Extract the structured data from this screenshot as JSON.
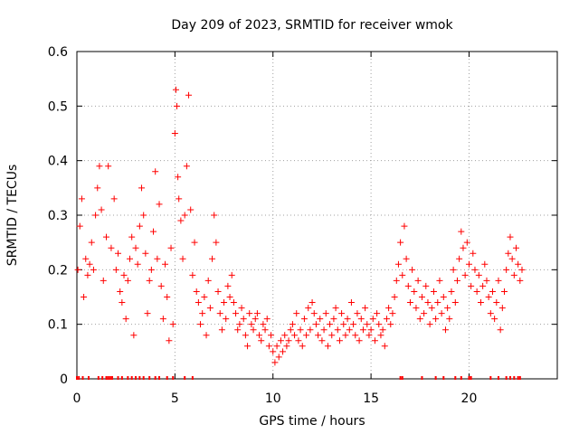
{
  "chart_data": {
    "type": "scatter",
    "title": "Day 209 of 2023, SRMTID for receiver wmok",
    "xlabel": "GPS time / hours",
    "ylabel": "SRMTID / TECUs",
    "xlim": [
      0,
      24.5
    ],
    "ylim": [
      0,
      0.6
    ],
    "xticks": [
      0,
      5,
      10,
      15,
      20
    ],
    "xtick_labels": [
      "0",
      "5",
      "10",
      "15",
      "20"
    ],
    "yticks": [
      0,
      0.1,
      0.2,
      0.3,
      0.4,
      0.5,
      0.6
    ],
    "ytick_labels": [
      "0",
      "0.1",
      "0.2",
      "0.3",
      "0.4",
      "0.5",
      "0.6"
    ],
    "grid": true,
    "marker": "+",
    "series": [
      {
        "name": "SRMTID",
        "color": "#ff0000",
        "x": [
          0.05,
          0.15,
          0.25,
          0.35,
          0.45,
          0.55,
          0.65,
          0.75,
          0.85,
          0.95,
          1.05,
          1.15,
          1.25,
          1.35,
          1.5,
          1.6,
          1.75,
          1.9,
          2.0,
          2.1,
          2.2,
          2.3,
          2.4,
          2.5,
          2.6,
          2.7,
          2.8,
          2.9,
          3.0,
          3.1,
          3.2,
          3.3,
          3.4,
          3.5,
          3.6,
          3.7,
          3.8,
          3.9,
          4.0,
          4.1,
          4.2,
          4.3,
          4.4,
          4.5,
          4.6,
          4.7,
          4.8,
          4.9,
          5.0,
          5.05,
          5.1,
          5.15,
          5.2,
          5.3,
          5.4,
          5.5,
          5.6,
          5.7,
          5.8,
          5.9,
          6.0,
          6.1,
          6.2,
          6.3,
          6.4,
          6.5,
          6.6,
          6.7,
          6.8,
          6.9,
          7.0,
          7.1,
          7.2,
          7.3,
          7.4,
          7.5,
          7.6,
          7.7,
          7.8,
          7.9,
          8.0,
          8.1,
          8.2,
          8.3,
          8.4,
          8.5,
          8.6,
          8.7,
          8.8,
          8.9,
          9.0,
          9.1,
          9.2,
          9.3,
          9.4,
          9.5,
          9.6,
          9.7,
          9.8,
          9.9,
          10.0,
          10.1,
          10.2,
          10.3,
          10.4,
          10.5,
          10.6,
          10.7,
          10.8,
          10.9,
          11.0,
          11.1,
          11.2,
          11.3,
          11.4,
          11.5,
          11.6,
          11.7,
          11.8,
          11.9,
          12.0,
          12.1,
          12.2,
          12.3,
          12.4,
          12.5,
          12.6,
          12.7,
          12.8,
          12.9,
          13.0,
          13.1,
          13.2,
          13.3,
          13.4,
          13.5,
          13.6,
          13.7,
          13.8,
          13.9,
          14.0,
          14.1,
          14.2,
          14.3,
          14.4,
          14.5,
          14.6,
          14.7,
          14.8,
          14.9,
          15.0,
          15.1,
          15.2,
          15.3,
          15.4,
          15.5,
          15.6,
          15.7,
          15.8,
          15.9,
          16.0,
          16.1,
          16.2,
          16.3,
          16.4,
          16.5,
          16.6,
          16.7,
          16.8,
          16.9,
          17.0,
          17.1,
          17.2,
          17.3,
          17.4,
          17.5,
          17.6,
          17.7,
          17.8,
          17.9,
          18.0,
          18.1,
          18.2,
          18.3,
          18.4,
          18.5,
          18.6,
          18.7,
          18.8,
          18.9,
          19.0,
          19.1,
          19.2,
          19.3,
          19.4,
          19.5,
          19.6,
          19.7,
          19.8,
          19.9,
          20.0,
          20.1,
          20.2,
          20.3,
          20.4,
          20.5,
          20.6,
          20.7,
          20.8,
          20.9,
          21.0,
          21.1,
          21.2,
          21.3,
          21.4,
          21.5,
          21.6,
          21.7,
          21.8,
          21.9,
          22.0,
          22.1,
          22.2,
          22.3,
          22.4,
          22.5,
          22.6,
          22.7
        ],
        "y": [
          0.2,
          0.28,
          0.33,
          0.15,
          0.22,
          0.19,
          0.21,
          0.25,
          0.2,
          0.3,
          0.35,
          0.39,
          0.31,
          0.18,
          0.26,
          0.39,
          0.24,
          0.33,
          0.2,
          0.23,
          0.16,
          0.14,
          0.19,
          0.11,
          0.18,
          0.22,
          0.26,
          0.08,
          0.24,
          0.21,
          0.28,
          0.35,
          0.3,
          0.23,
          0.12,
          0.18,
          0.2,
          0.27,
          0.38,
          0.22,
          0.32,
          0.17,
          0.11,
          0.21,
          0.15,
          0.07,
          0.24,
          0.1,
          0.45,
          0.53,
          0.5,
          0.37,
          0.33,
          0.29,
          0.22,
          0.3,
          0.39,
          0.52,
          0.31,
          0.19,
          0.25,
          0.16,
          0.14,
          0.1,
          0.12,
          0.15,
          0.08,
          0.18,
          0.13,
          0.22,
          0.3,
          0.25,
          0.16,
          0.12,
          0.09,
          0.14,
          0.11,
          0.17,
          0.15,
          0.19,
          0.14,
          0.12,
          0.09,
          0.1,
          0.13,
          0.11,
          0.08,
          0.06,
          0.12,
          0.1,
          0.09,
          0.11,
          0.12,
          0.08,
          0.07,
          0.1,
          0.09,
          0.11,
          0.06,
          0.08,
          0.05,
          0.03,
          0.06,
          0.04,
          0.07,
          0.05,
          0.08,
          0.06,
          0.07,
          0.09,
          0.1,
          0.08,
          0.12,
          0.07,
          0.09,
          0.06,
          0.11,
          0.08,
          0.13,
          0.09,
          0.14,
          0.12,
          0.1,
          0.08,
          0.11,
          0.07,
          0.09,
          0.12,
          0.06,
          0.1,
          0.08,
          0.11,
          0.13,
          0.09,
          0.07,
          0.12,
          0.1,
          0.08,
          0.11,
          0.09,
          0.14,
          0.1,
          0.08,
          0.12,
          0.07,
          0.11,
          0.09,
          0.13,
          0.1,
          0.08,
          0.09,
          0.11,
          0.07,
          0.12,
          0.1,
          0.08,
          0.09,
          0.06,
          0.11,
          0.13,
          0.1,
          0.12,
          0.15,
          0.18,
          0.21,
          0.25,
          0.19,
          0.28,
          0.22,
          0.17,
          0.14,
          0.2,
          0.16,
          0.13,
          0.18,
          0.11,
          0.15,
          0.12,
          0.17,
          0.14,
          0.1,
          0.13,
          0.16,
          0.11,
          0.14,
          0.18,
          0.12,
          0.15,
          0.09,
          0.13,
          0.11,
          0.16,
          0.2,
          0.14,
          0.18,
          0.22,
          0.27,
          0.24,
          0.19,
          0.25,
          0.21,
          0.17,
          0.23,
          0.2,
          0.16,
          0.19,
          0.14,
          0.17,
          0.21,
          0.18,
          0.15,
          0.12,
          0.16,
          0.11,
          0.14,
          0.18,
          0.09,
          0.13,
          0.16,
          0.2,
          0.23,
          0.26,
          0.22,
          0.19,
          0.24,
          0.21,
          0.18,
          0.2
        ]
      }
    ],
    "zero_values_at_hours": [
      0.0,
      0.1,
      0.3,
      0.6,
      1.1,
      1.3,
      1.5,
      1.6,
      1.7,
      1.8,
      2.1,
      2.3,
      2.6,
      2.8,
      3.0,
      3.2,
      3.4,
      3.7,
      4.0,
      4.2,
      4.6,
      4.9,
      5.5,
      5.9,
      16.5,
      16.6,
      17.6,
      18.3,
      18.7,
      19.3,
      19.6,
      20.0,
      20.1,
      21.1,
      21.5,
      21.9,
      22.1,
      22.3,
      22.5,
      22.6
    ]
  }
}
